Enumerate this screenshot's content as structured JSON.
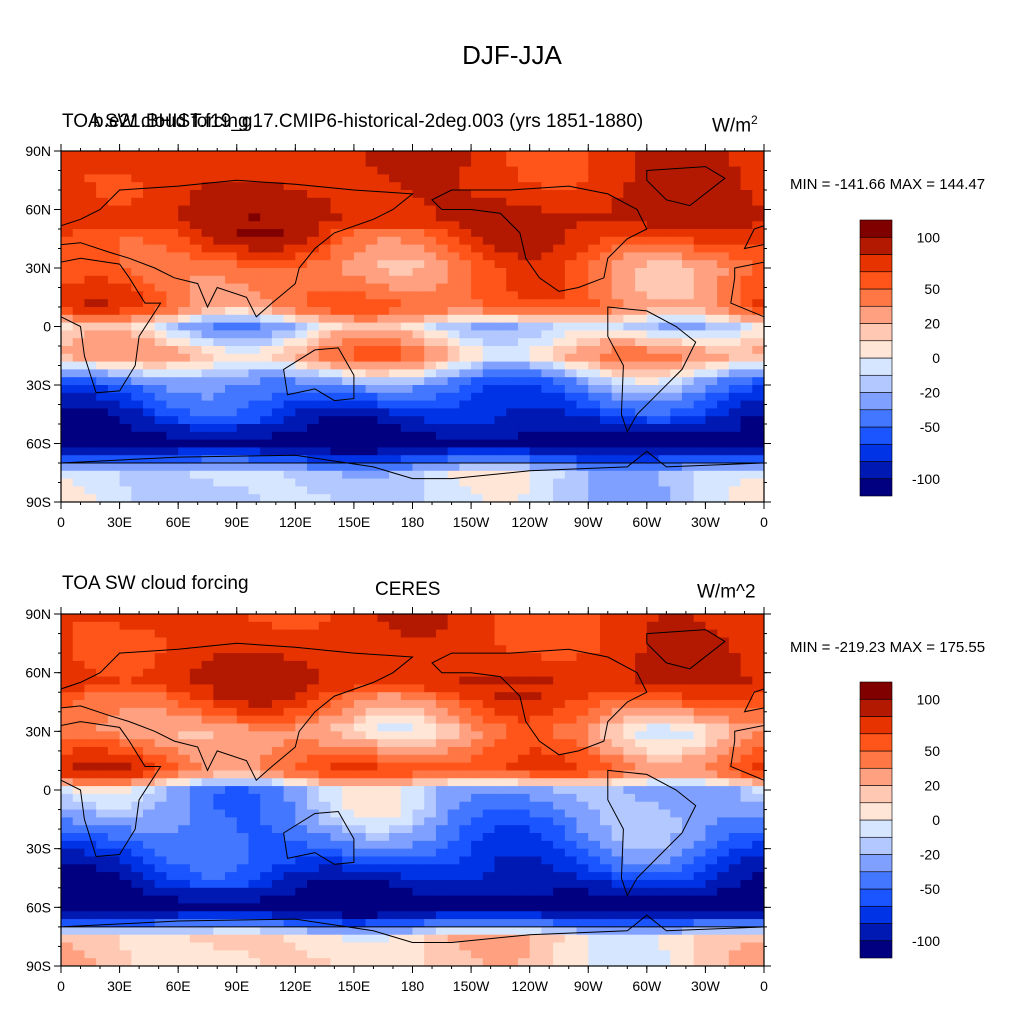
{
  "figure": {
    "title": "DJF-JJA"
  },
  "colorbar": {
    "colors": [
      "#000080",
      "#0019b3",
      "#0033e6",
      "#1a55ff",
      "#4477ff",
      "#80a0ff",
      "#b3c8ff",
      "#d7e6ff",
      "#ffe6d7",
      "#ffc8b3",
      "#ffa080",
      "#ff7744",
      "#ff551a",
      "#e63300",
      "#b31900",
      "#800000"
    ],
    "labels": [
      "-100",
      "-50",
      "-20",
      "0",
      "20",
      "50",
      "100"
    ]
  },
  "axes": {
    "lon_labels": [
      "0",
      "30E",
      "60E",
      "90E",
      "120E",
      "150E",
      "180",
      "150W",
      "120W",
      "90W",
      "60W",
      "30W",
      "0"
    ],
    "lat_labels": [
      "90N",
      "60N",
      "30N",
      "0",
      "30S",
      "60S",
      "90S"
    ]
  },
  "panels": [
    {
      "left_title": "TOA SW cloud forcing",
      "center_title": "b.e21.BHIST.f19_g17.CMIP6-historical-2deg.003 (yrs 1851-1880)",
      "units_base": "W/m",
      "units_sup": "2",
      "minmax": "MIN = -141.66 MAX = 144.47"
    },
    {
      "left_title": "TOA SW cloud forcing",
      "center_title": "CERES",
      "units_base": "W/m^2",
      "units_sup": "",
      "minmax": "MIN = -219.23 MAX = 175.55"
    }
  ],
  "chart_data": {
    "type": "heatmap",
    "title": "DJF-JJA",
    "xlabel": "",
    "ylabel": "",
    "xlim": [
      0,
      360
    ],
    "ylim": [
      -90,
      90
    ],
    "contour_levels": [
      -100,
      -80,
      -65,
      -50,
      -35,
      -20,
      -10,
      0,
      10,
      20,
      35,
      50,
      65,
      80,
      100
    ],
    "lat_band_means": [
      {
        "name": "b.e21.BHIST.f19_g17.CMIP6-historical-2deg.003 (yrs 1851-1880)",
        "lat": [
          75,
          55,
          30,
          10,
          0,
          -15,
          -30,
          -45,
          -60,
          -75
        ],
        "values": [
          75,
          85,
          40,
          50,
          -10,
          30,
          -40,
          -75,
          -115,
          -10
        ]
      },
      {
        "name": "CERES",
        "lat": [
          75,
          55,
          30,
          10,
          0,
          -15,
          -30,
          -45,
          -60,
          -75
        ],
        "values": [
          70,
          80,
          20,
          60,
          -20,
          -30,
          -50,
          -80,
          -120,
          10
        ]
      }
    ]
  }
}
